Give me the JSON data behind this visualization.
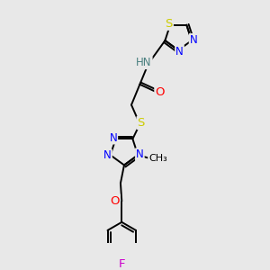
{
  "background_color": "#e8e8e8",
  "bond_color": "#000000",
  "atom_colors": {
    "N": "#0000ff",
    "S": "#cccc00",
    "O": "#ff0000",
    "F": "#cc00cc",
    "H": "#4a8080",
    "C": "#000000"
  },
  "font_size": 8.5,
  "lw": 1.4,
  "figsize": [
    3.0,
    3.0
  ],
  "dpi": 100
}
